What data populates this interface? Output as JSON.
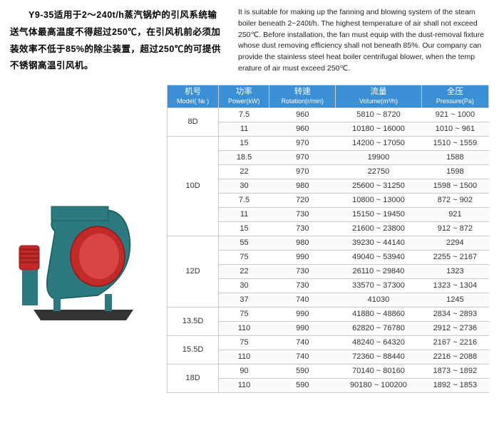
{
  "intro": {
    "cn": "　　Y9-35适用于2～240t/h蒸汽锅炉的引风系统输送气体最高温度不得超过250℃，在引风机前必须加装效率不低于85%的除尘装置，超过250℃的可提供不锈钢高温引风机。",
    "en": "It is suitable for making up the fanning and blowing system of the steam boiler beneath 2~240t/h. The highest temperature of air shall not exceed 250℃. Before installation, the fan must equip with the dust-removal fixture whose dust removing efficiency shall not beneath 85%. Our company can provide the stainless steel heat boiler centrifugal blower, when the temp erature of air must exceed 250℃."
  },
  "headers": [
    {
      "cn": "机号",
      "en": "Model( № )"
    },
    {
      "cn": "功率",
      "en": "Power(kW)"
    },
    {
      "cn": "转速",
      "en": "Rotation(r/min)"
    },
    {
      "cn": "流量",
      "en": "Volume(m³/h)"
    },
    {
      "cn": "全压",
      "en": "Pressure(Pa)"
    }
  ],
  "rows": [
    {
      "model": "8D",
      "span": 2,
      "d": [
        [
          "7.5",
          "960",
          "5810 ~ 8720",
          "921 ~ 1000"
        ],
        [
          "11",
          "960",
          "10180 ~ 16000",
          "1010 ~ 961"
        ]
      ]
    },
    {
      "model": "10D",
      "span": 7,
      "d": [
        [
          "15",
          "970",
          "14200 ~ 17050",
          "1510 ~ 1559"
        ],
        [
          "18.5",
          "970",
          "19900",
          "1588"
        ],
        [
          "22",
          "970",
          "22750",
          "1598"
        ],
        [
          "30",
          "980",
          "25600 ~ 31250",
          "1598 ~ 1500"
        ],
        [
          "7.5",
          "720",
          "10800 ~ 13000",
          "872 ~ 902"
        ],
        [
          "11",
          "730",
          "15150 ~ 19450",
          "921"
        ],
        [
          "15",
          "730",
          "21600 ~ 23800",
          "912 ~ 872"
        ]
      ]
    },
    {
      "model": "12D",
      "span": 5,
      "d": [
        [
          "55",
          "980",
          "39230 ~ 44140",
          "2294"
        ],
        [
          "75",
          "990",
          "49040 ~ 53940",
          "2255 ~ 2167"
        ],
        [
          "22",
          "730",
          "26110 ~ 29840",
          "1323"
        ],
        [
          "30",
          "730",
          "33570 ~ 37300",
          "1323 ~ 1304"
        ],
        [
          "37",
          "740",
          "41030",
          "1245"
        ]
      ]
    },
    {
      "model": "13.5D",
      "span": 2,
      "d": [
        [
          "75",
          "990",
          "41880 ~ 48860",
          "2834 ~ 2893"
        ],
        [
          "110",
          "990",
          "62820 ~ 76780",
          "2912 ~ 2736"
        ]
      ]
    },
    {
      "model": "15.5D",
      "span": 2,
      "d": [
        [
          "75",
          "740",
          "48240 ~ 64320",
          "2167 ~ 2216"
        ],
        [
          "110",
          "740",
          "72360 ~ 88440",
          "2216 ~ 2088"
        ]
      ]
    },
    {
      "model": "18D",
      "span": 2,
      "d": [
        [
          "90",
          "590",
          "70140 ~ 80160",
          "1873 ~ 1892"
        ],
        [
          "110",
          "590",
          "90180 ~ 100200",
          "1892 ~ 1853"
        ]
      ]
    }
  ],
  "colors": {
    "header_bg": "#3b8fd4",
    "header_fg": "#ffffff",
    "border": "#cccccc",
    "fan_body": "#2a7a7f",
    "fan_inlet": "#c22a2a",
    "motor": "#c22a2a",
    "base": "#333333"
  }
}
